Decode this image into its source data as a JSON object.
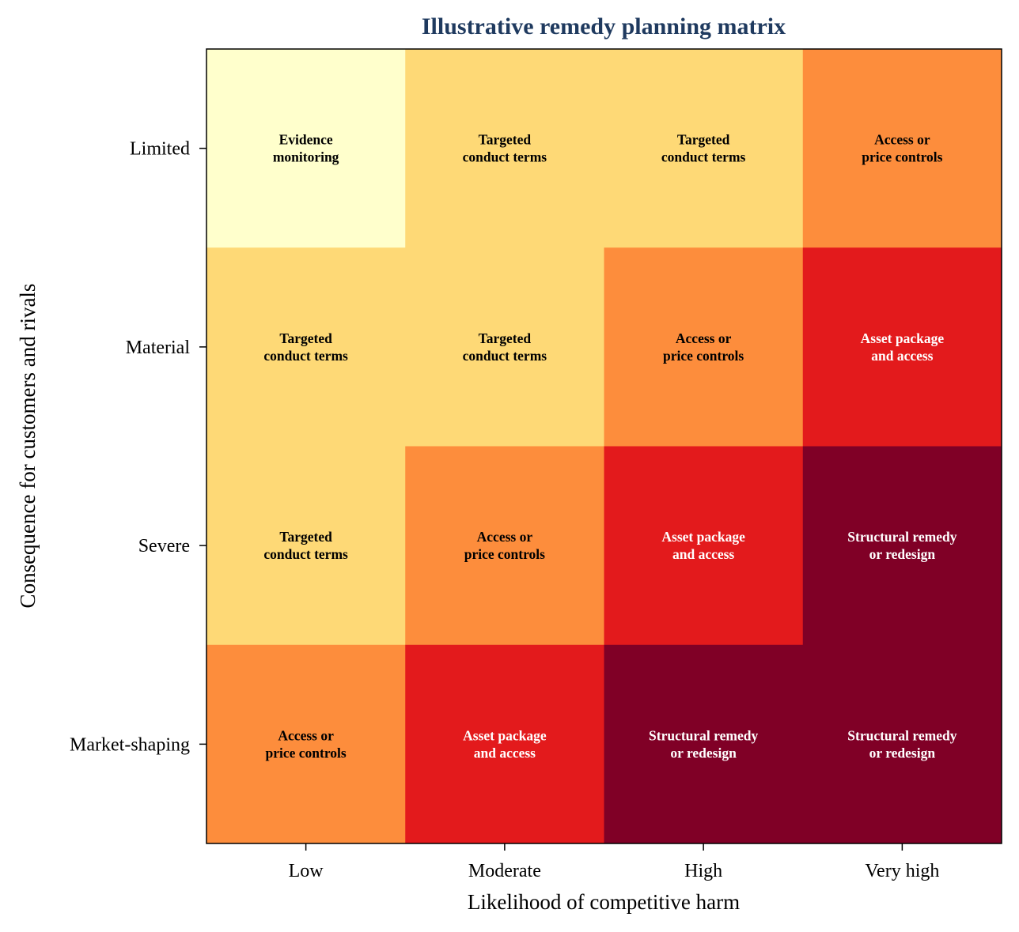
{
  "chart_data": {
    "type": "heatmap",
    "title": "Illustrative remedy planning matrix",
    "xlabel": "Likelihood of competitive harm",
    "ylabel": "Consequence for customers and rivals",
    "x_categories": [
      "Low",
      "Moderate",
      "High",
      "Very high"
    ],
    "y_categories": [
      "Limited",
      "Material",
      "Severe",
      "Market-shaping"
    ],
    "values": [
      [
        1,
        2,
        2,
        3
      ],
      [
        2,
        2,
        3,
        4
      ],
      [
        2,
        3,
        4,
        5
      ],
      [
        3,
        4,
        5,
        5
      ]
    ],
    "cell_labels": [
      [
        [
          "Evidence",
          "monitoring"
        ],
        [
          "Targeted",
          "conduct terms"
        ],
        [
          "Targeted",
          "conduct terms"
        ],
        [
          "Access or",
          "price controls"
        ]
      ],
      [
        [
          "Targeted",
          "conduct terms"
        ],
        [
          "Targeted",
          "conduct terms"
        ],
        [
          "Access or",
          "price controls"
        ],
        [
          "Asset package",
          "and access"
        ]
      ],
      [
        [
          "Targeted",
          "conduct terms"
        ],
        [
          "Access or",
          "price controls"
        ],
        [
          "Asset package",
          "and access"
        ],
        [
          "Structural remedy",
          "or redesign"
        ]
      ],
      [
        [
          "Access or",
          "price controls"
        ],
        [
          "Asset package",
          "and access"
        ],
        [
          "Structural remedy",
          "or redesign"
        ],
        [
          "Structural remedy",
          "or redesign"
        ]
      ]
    ],
    "colors": {
      "1": "#ffffcc",
      "2": "#fed976",
      "3": "#fd8d3c",
      "4": "#e31a1c",
      "5": "#800026"
    },
    "label_colors": {
      "1": "#000000",
      "2": "#000000",
      "3": "#000000",
      "4": "#ffffff",
      "5": "#ffffff"
    },
    "title_color": "#1f3a5f",
    "grid": false
  }
}
